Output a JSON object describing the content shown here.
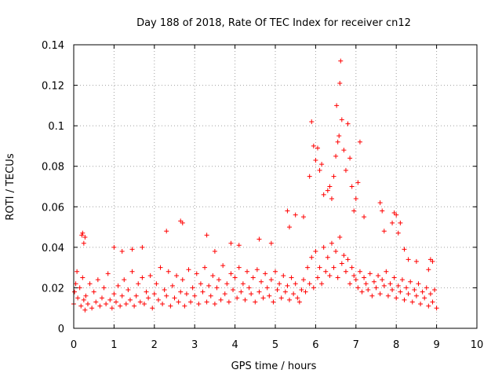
{
  "chart_data": {
    "type": "scatter",
    "title": "Day 188 of 2018, Rate Of TEC Index for receiver cn12",
    "xlabel": "GPS time / hours",
    "ylabel": "ROTI / TECUs",
    "xlim": [
      0,
      10
    ],
    "ylim": [
      0,
      0.14
    ],
    "xticks": [
      0,
      1,
      2,
      3,
      4,
      5,
      6,
      7,
      8,
      9,
      10
    ],
    "xtick_labels": [
      "0",
      "1",
      "2",
      "3",
      "4",
      "5",
      "6",
      "7",
      "8",
      "9",
      "10"
    ],
    "yticks": [
      0,
      0.02,
      0.04,
      0.06,
      0.08,
      0.1,
      0.12,
      0.14
    ],
    "ytick_labels": [
      "0",
      "0.02",
      "0.04",
      "0.06",
      "0.08",
      "0.1",
      "0.12",
      "0.14"
    ],
    "grid": true,
    "marker": "+",
    "marker_color": "#ff0000",
    "series": [
      {
        "name": "ROTI",
        "x": [
          0.0,
          0.02,
          0.05,
          0.08,
          0.1,
          0.15,
          0.18,
          0.22,
          0.25,
          0.28,
          0.3,
          0.35,
          0.4,
          0.45,
          0.5,
          0.55,
          0.6,
          0.65,
          0.7,
          0.75,
          0.8,
          0.85,
          0.9,
          0.95,
          1.0,
          1.05,
          1.1,
          1.15,
          1.2,
          1.25,
          1.3,
          1.35,
          1.4,
          1.45,
          1.5,
          1.55,
          1.6,
          1.65,
          1.7,
          1.75,
          1.8,
          1.85,
          1.9,
          1.95,
          2.0,
          2.05,
          2.1,
          2.15,
          2.2,
          2.25,
          2.3,
          2.35,
          2.4,
          2.45,
          2.5,
          2.55,
          2.6,
          2.65,
          2.7,
          2.75,
          2.8,
          2.85,
          2.9,
          2.95,
          3.0,
          3.05,
          3.1,
          3.15,
          3.2,
          3.25,
          3.3,
          3.35,
          3.4,
          3.45,
          3.5,
          3.55,
          3.6,
          3.65,
          3.7,
          3.75,
          3.8,
          3.85,
          3.9,
          3.95,
          4.0,
          4.05,
          4.1,
          4.15,
          4.2,
          4.25,
          4.3,
          4.35,
          4.4,
          4.45,
          4.5,
          4.55,
          4.6,
          4.65,
          4.7,
          4.75,
          4.8,
          4.85,
          4.9,
          4.95,
          5.0,
          5.05,
          5.1,
          5.15,
          5.2,
          5.25,
          5.3,
          5.35,
          5.4,
          5.45,
          5.5,
          5.55,
          5.6,
          5.65,
          5.7,
          5.75,
          5.8,
          5.85,
          5.9,
          5.95,
          6.0,
          6.05,
          6.1,
          6.15,
          6.2,
          6.25,
          6.3,
          6.35,
          6.4,
          6.45,
          6.5,
          6.55,
          6.6,
          6.65,
          6.7,
          6.75,
          6.8,
          6.85,
          6.9,
          6.95,
          7.0,
          7.05,
          7.1,
          7.15,
          7.2,
          7.25,
          7.3,
          7.35,
          7.4,
          7.45,
          7.5,
          7.55,
          7.6,
          7.65,
          7.7,
          7.75,
          7.8,
          7.85,
          7.9,
          7.95,
          8.0,
          8.05,
          8.1,
          8.15,
          8.2,
          8.25,
          8.3,
          8.35,
          8.4,
          8.45,
          8.5,
          8.55,
          8.6,
          8.65,
          8.7,
          8.75,
          8.8,
          8.85,
          8.9,
          8.95,
          9.0,
          0.2,
          0.22,
          0.25,
          0.28,
          1.0,
          1.2,
          1.45,
          1.7,
          2.3,
          2.65,
          2.7,
          3.3,
          3.5,
          3.9,
          4.1,
          4.6,
          4.9,
          5.3,
          5.35,
          5.5,
          5.7,
          5.85,
          5.9,
          5.95,
          6.0,
          6.05,
          6.1,
          6.15,
          6.2,
          6.3,
          6.35,
          6.4,
          6.45,
          6.5,
          6.52,
          6.55,
          6.58,
          6.6,
          6.62,
          6.65,
          6.7,
          6.75,
          6.8,
          6.85,
          6.9,
          6.95,
          7.0,
          7.05,
          7.1,
          7.2,
          7.6,
          7.65,
          7.7,
          7.9,
          7.95,
          8.0,
          8.05,
          8.1,
          8.2,
          8.3,
          8.5,
          8.8,
          8.85,
          8.9
        ],
        "y": [
          0.012,
          0.018,
          0.022,
          0.028,
          0.015,
          0.02,
          0.011,
          0.025,
          0.014,
          0.009,
          0.016,
          0.012,
          0.022,
          0.01,
          0.018,
          0.013,
          0.024,
          0.011,
          0.015,
          0.02,
          0.012,
          0.027,
          0.014,
          0.01,
          0.017,
          0.013,
          0.021,
          0.011,
          0.016,
          0.024,
          0.012,
          0.019,
          0.014,
          0.028,
          0.011,
          0.016,
          0.022,
          0.013,
          0.025,
          0.012,
          0.018,
          0.015,
          0.026,
          0.01,
          0.017,
          0.022,
          0.014,
          0.03,
          0.012,
          0.019,
          0.016,
          0.028,
          0.011,
          0.021,
          0.015,
          0.026,
          0.013,
          0.018,
          0.024,
          0.011,
          0.017,
          0.029,
          0.013,
          0.02,
          0.016,
          0.027,
          0.012,
          0.022,
          0.018,
          0.03,
          0.013,
          0.021,
          0.016,
          0.026,
          0.012,
          0.02,
          0.024,
          0.014,
          0.031,
          0.017,
          0.022,
          0.013,
          0.027,
          0.019,
          0.025,
          0.015,
          0.03,
          0.018,
          0.022,
          0.014,
          0.028,
          0.02,
          0.017,
          0.025,
          0.013,
          0.029,
          0.018,
          0.023,
          0.015,
          0.027,
          0.02,
          0.016,
          0.024,
          0.013,
          0.028,
          0.019,
          0.022,
          0.015,
          0.026,
          0.018,
          0.021,
          0.014,
          0.025,
          0.017,
          0.022,
          0.015,
          0.013,
          0.019,
          0.024,
          0.018,
          0.03,
          0.022,
          0.035,
          0.02,
          0.038,
          0.025,
          0.03,
          0.022,
          0.04,
          0.028,
          0.035,
          0.026,
          0.042,
          0.03,
          0.038,
          0.025,
          0.045,
          0.032,
          0.036,
          0.028,
          0.034,
          0.022,
          0.03,
          0.026,
          0.024,
          0.02,
          0.028,
          0.018,
          0.025,
          0.022,
          0.019,
          0.027,
          0.016,
          0.023,
          0.02,
          0.026,
          0.017,
          0.024,
          0.021,
          0.028,
          0.016,
          0.022,
          0.019,
          0.025,
          0.015,
          0.021,
          0.018,
          0.024,
          0.014,
          0.02,
          0.017,
          0.023,
          0.013,
          0.019,
          0.016,
          0.022,
          0.012,
          0.018,
          0.015,
          0.02,
          0.011,
          0.017,
          0.013,
          0.019,
          0.01,
          0.046,
          0.047,
          0.042,
          0.045,
          0.04,
          0.038,
          0.039,
          0.04,
          0.048,
          0.053,
          0.052,
          0.046,
          0.038,
          0.042,
          0.041,
          0.044,
          0.042,
          0.058,
          0.05,
          0.056,
          0.055,
          0.075,
          0.102,
          0.09,
          0.083,
          0.089,
          0.078,
          0.081,
          0.066,
          0.068,
          0.07,
          0.064,
          0.075,
          0.085,
          0.11,
          0.092,
          0.095,
          0.121,
          0.132,
          0.103,
          0.088,
          0.078,
          0.101,
          0.084,
          0.07,
          0.058,
          0.064,
          0.072,
          0.092,
          0.055,
          0.062,
          0.058,
          0.048,
          0.052,
          0.057,
          0.056,
          0.047,
          0.052,
          0.039,
          0.034,
          0.033,
          0.029,
          0.034,
          0.033
        ]
      }
    ]
  }
}
